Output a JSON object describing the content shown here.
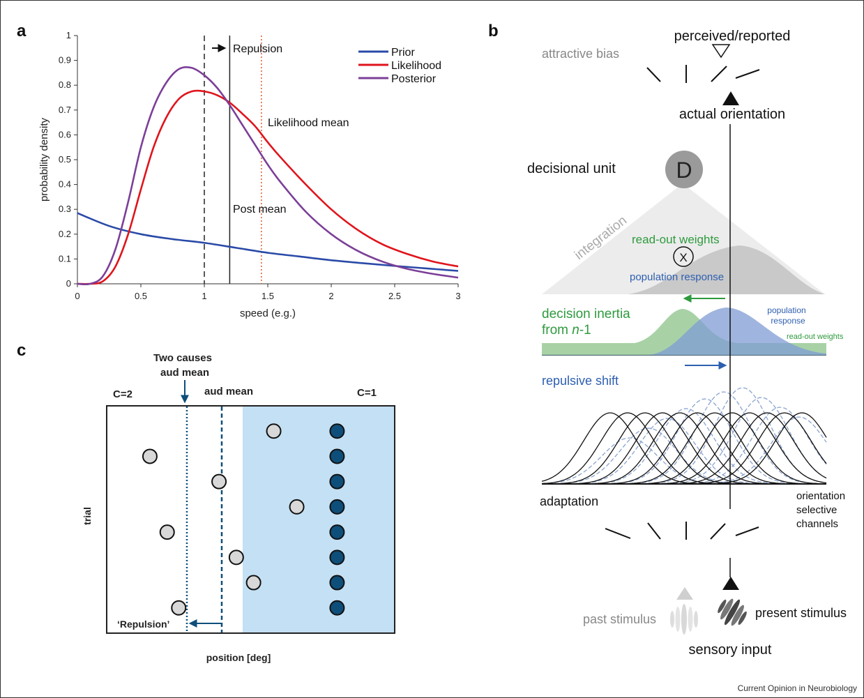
{
  "panel_labels": [
    "a",
    "b",
    "c"
  ],
  "credit": "Current Opinion in Neurobiology",
  "colors": {
    "prior": "#2a4aa8",
    "likelihood": "#e0141c",
    "posterior": "#7b3f98",
    "green": "#2e9a3e",
    "blue": "#2d5fb0",
    "grey": "#888888",
    "c_dark": "#0e4e7a",
    "c_light_fill": "#d8d8d8",
    "c_region": "#c4e0f4"
  },
  "chart_data": [
    {
      "type": "line",
      "panel": "a",
      "xlabel": "speed (e.g.)",
      "ylabel": "probability density",
      "xlim": [
        0,
        3
      ],
      "ylim": [
        0,
        1
      ],
      "xticks": [
        "0",
        "0.5",
        "1",
        "1.5",
        "2",
        "2.5",
        "3"
      ],
      "yticks": [
        "0",
        "0.1",
        "0.2",
        "0.3",
        "0.4",
        "0.5",
        "0.6",
        "0.7",
        "0.8",
        "0.9",
        "1"
      ],
      "legend_position": "top-right",
      "series": [
        {
          "name": "Prior",
          "x": [
            0,
            0.25,
            0.5,
            0.75,
            1,
            1.25,
            1.5,
            1.75,
            2,
            2.25,
            2.5,
            2.75,
            3
          ],
          "values": [
            0.285,
            0.233,
            0.2,
            0.18,
            0.165,
            0.145,
            0.125,
            0.11,
            0.095,
            0.083,
            0.072,
            0.062,
            0.052
          ]
        },
        {
          "name": "Likelihood",
          "x": [
            0,
            0.1,
            0.2,
            0.3,
            0.4,
            0.5,
            0.6,
            0.7,
            0.8,
            0.9,
            1.0,
            1.1,
            1.2,
            1.3,
            1.4,
            1.5,
            1.6,
            1.8,
            2.0,
            2.2,
            2.4,
            2.6,
            2.8,
            3.0
          ],
          "values": [
            0,
            0,
            0.01,
            0.07,
            0.2,
            0.38,
            0.55,
            0.67,
            0.745,
            0.775,
            0.775,
            0.76,
            0.73,
            0.685,
            0.635,
            0.57,
            0.51,
            0.4,
            0.3,
            0.22,
            0.16,
            0.12,
            0.09,
            0.07
          ]
        },
        {
          "name": "Posterior",
          "x": [
            0,
            0.1,
            0.2,
            0.3,
            0.4,
            0.5,
            0.6,
            0.7,
            0.8,
            0.9,
            1.0,
            1.1,
            1.2,
            1.3,
            1.4,
            1.5,
            1.6,
            1.8,
            2.0,
            2.2,
            2.4,
            2.6,
            2.8,
            3.0
          ],
          "values": [
            0,
            0,
            0.03,
            0.14,
            0.33,
            0.55,
            0.71,
            0.81,
            0.865,
            0.87,
            0.84,
            0.79,
            0.72,
            0.64,
            0.56,
            0.48,
            0.41,
            0.29,
            0.2,
            0.135,
            0.09,
            0.06,
            0.04,
            0.025
          ]
        }
      ],
      "vlines": [
        {
          "x": 1.0,
          "style": "dashed"
        },
        {
          "x": 1.2,
          "style": "solid"
        },
        {
          "x": 1.45,
          "style": "dotted"
        }
      ],
      "annotations": {
        "repulsion": "Repulsion",
        "likelihood_mean": "Likelihood mean",
        "post_mean": "Post mean"
      }
    },
    {
      "type": "scatter",
      "panel": "c",
      "xlabel": "position [deg]",
      "ylabel": "trial",
      "labels": {
        "c2": "C=2",
        "c1": "C=1",
        "two_causes_line1": "Two causes",
        "two_causes_line2": "aud mean",
        "aud_mean": "aud mean",
        "repulsion": "‘Repulsion’"
      },
      "series": [
        {
          "name": "",
          "points": [
            [
              0.58,
              1
            ],
            [
              0.15,
              2
            ],
            [
              0.39,
              3
            ],
            [
              0.66,
              4
            ],
            [
              0.21,
              5
            ],
            [
              0.45,
              6
            ],
            [
              0.51,
              7
            ],
            [
              0.25,
              8
            ]
          ]
        },
        {
          "name": "",
          "points": [
            [
              0.8,
              1
            ],
            [
              0.8,
              2
            ],
            [
              0.8,
              3
            ],
            [
              0.8,
              4
            ],
            [
              0.8,
              5
            ],
            [
              0.8,
              6
            ],
            [
              0.8,
              7
            ],
            [
              0.8,
              8
            ]
          ]
        }
      ]
    }
  ],
  "panel_b": {
    "perceived": "perceived/reported",
    "attractive_bias": "attractive bias",
    "actual_orientation": "actual orientation",
    "decisional_unit": "decisional unit",
    "d_letter": "D",
    "integration": "integration",
    "readout_weights": "read-out weights",
    "x_symbol": "X",
    "population_response": "population response",
    "inertia_line1": "decision inertia",
    "inertia_line2_prefix": "from ",
    "inertia_n": "n",
    "inertia_suffix": "-1",
    "population_small_1": "population",
    "population_small_2": "response",
    "readout_small": "read-out weights",
    "repulsive_shift": "repulsive shift",
    "adaptation": "adaptation",
    "orientation_1": "orientation",
    "orientation_2": "selective",
    "orientation_3": "channels",
    "past_stimulus": "past stimulus",
    "present_stimulus": "present stimulus",
    "sensory_input": "sensory input"
  }
}
